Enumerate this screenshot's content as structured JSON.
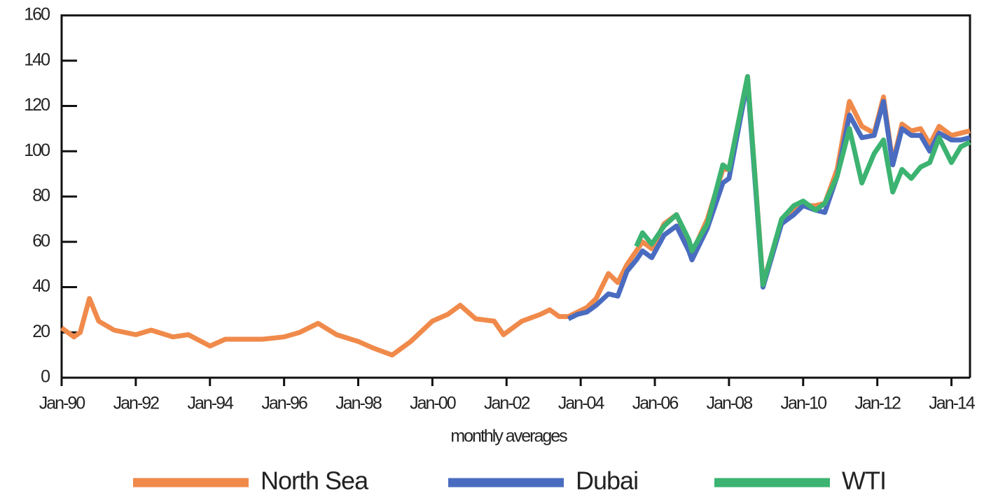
{
  "chart_data": {
    "type": "line",
    "x_label": "monthly averages",
    "x": [
      "1990-01",
      "1990-05",
      "1990-07",
      "1990-10",
      "1991-01",
      "1991-06",
      "1992-01",
      "1992-06",
      "1993-01",
      "1993-06",
      "1994-01",
      "1994-06",
      "1995-01",
      "1995-06",
      "1996-01",
      "1996-06",
      "1996-12",
      "1997-06",
      "1998-01",
      "1998-06",
      "1998-12",
      "1999-06",
      "2000-01",
      "2000-06",
      "2000-10",
      "2001-03",
      "2001-09",
      "2001-12",
      "2002-06",
      "2002-12",
      "2003-03",
      "2003-06",
      "2003-09",
      "2003-12",
      "2004-03",
      "2004-06",
      "2004-10",
      "2005-01",
      "2005-04",
      "2005-07",
      "2005-09",
      "2005-12",
      "2006-04",
      "2006-08",
      "2006-12",
      "2007-01",
      "2007-06",
      "2007-11",
      "2008-01",
      "2008-07",
      "2008-12",
      "2009-06",
      "2009-10",
      "2010-01",
      "2010-05",
      "2010-08",
      "2010-12",
      "2011-04",
      "2011-08",
      "2011-12",
      "2012-03",
      "2012-06",
      "2012-09",
      "2012-12",
      "2013-03",
      "2013-06",
      "2013-09",
      "2014-01",
      "2014-04",
      "2014-07"
    ],
    "series": [
      {
        "name": "North Sea",
        "color": "#f08a4b",
        "values": [
          22,
          18,
          20,
          35,
          25,
          21,
          19,
          21,
          18,
          19,
          14,
          17,
          17,
          17,
          18,
          20,
          24,
          19,
          16,
          13,
          10,
          16,
          25,
          28,
          32,
          26,
          25,
          19,
          25,
          28,
          30,
          27,
          27,
          29,
          31,
          35,
          46,
          42,
          50,
          56,
          60,
          57,
          68,
          72,
          60,
          55,
          70,
          92,
          92,
          133,
          42,
          68,
          74,
          76,
          76,
          77,
          92,
          122,
          111,
          108,
          124,
          95,
          112,
          109,
          110,
          103,
          111,
          107,
          108,
          109
        ]
      },
      {
        "name": "Dubai",
        "color": "#4a6cc0",
        "values": [
          null,
          null,
          null,
          null,
          null,
          null,
          null,
          null,
          null,
          null,
          null,
          null,
          null,
          null,
          null,
          null,
          null,
          null,
          null,
          null,
          null,
          null,
          null,
          null,
          null,
          null,
          null,
          null,
          null,
          null,
          null,
          null,
          26,
          28,
          29,
          32,
          37,
          36,
          47,
          52,
          56,
          53,
          63,
          67,
          56,
          52,
          66,
          86,
          88,
          131,
          40,
          68,
          72,
          76,
          74,
          73,
          89,
          116,
          106,
          107,
          122,
          94,
          110,
          107,
          107,
          100,
          108,
          105,
          105,
          106
        ]
      },
      {
        "name": "WTI",
        "color": "#3cb371",
        "values": [
          null,
          null,
          null,
          null,
          null,
          null,
          null,
          null,
          null,
          null,
          null,
          null,
          null,
          null,
          null,
          null,
          null,
          null,
          null,
          null,
          null,
          null,
          null,
          null,
          null,
          null,
          null,
          null,
          null,
          null,
          null,
          null,
          null,
          null,
          null,
          null,
          null,
          null,
          null,
          58,
          64,
          59,
          67,
          72,
          61,
          56,
          68,
          94,
          92,
          133,
          41,
          70,
          76,
          78,
          74,
          77,
          89,
          110,
          86,
          99,
          105,
          82,
          92,
          88,
          93,
          95,
          106,
          95,
          102,
          104
        ]
      }
    ],
    "xlim": [
      "1990-01",
      "2014-07"
    ],
    "xticks": [
      {
        "value": "1990-01",
        "label": "Jan-90"
      },
      {
        "value": "1992-01",
        "label": "Jan-92"
      },
      {
        "value": "1994-01",
        "label": "Jan-94"
      },
      {
        "value": "1996-01",
        "label": "Jan-96"
      },
      {
        "value": "1998-01",
        "label": "Jan-98"
      },
      {
        "value": "2000-01",
        "label": "Jan-00"
      },
      {
        "value": "2002-01",
        "label": "Jan-02"
      },
      {
        "value": "2004-01",
        "label": "Jan-04"
      },
      {
        "value": "2006-01",
        "label": "Jan-06"
      },
      {
        "value": "2008-01",
        "label": "Jan-08"
      },
      {
        "value": "2010-01",
        "label": "Jan-10"
      },
      {
        "value": "2012-01",
        "label": "Jan-12"
      },
      {
        "value": "2014-01",
        "label": "Jan-14"
      }
    ],
    "ylim": [
      0,
      160
    ],
    "yticks": [
      0,
      20,
      40,
      60,
      80,
      100,
      120,
      140,
      160
    ],
    "legend": "bottom"
  }
}
